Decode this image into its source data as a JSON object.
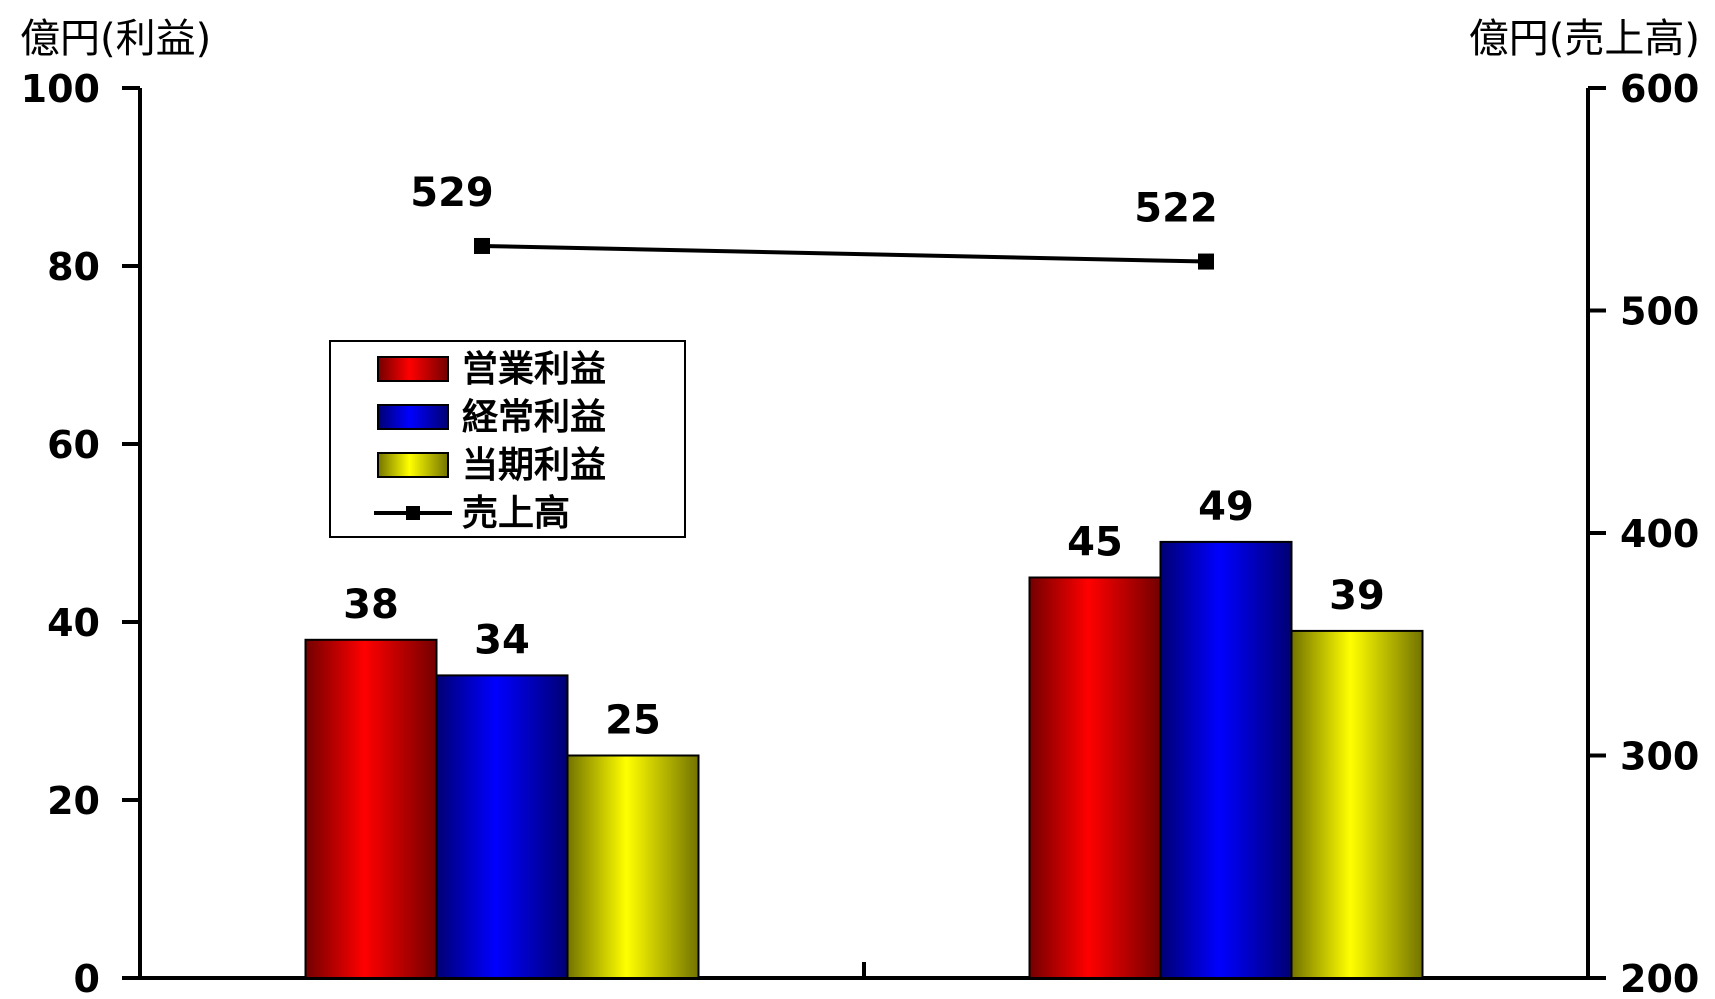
{
  "chart_data": {
    "type": "bar",
    "left_axis_title": "億円(利益)",
    "right_axis_title": "億円(売上高)",
    "groups": 2,
    "series": [
      {
        "name": "営業利益",
        "values": [
          38,
          45
        ],
        "color": "#ff0000",
        "axis": "left"
      },
      {
        "name": "経常利益",
        "values": [
          34,
          49
        ],
        "color": "#0000ff",
        "axis": "left"
      },
      {
        "name": "当期利益",
        "values": [
          25,
          39
        ],
        "color": "#ffff00",
        "axis": "left"
      }
    ],
    "line_series": {
      "name": "売上高",
      "values": [
        529,
        522
      ],
      "axis": "right",
      "marker": "square",
      "color": "#000000"
    },
    "left_axis": {
      "min": 0,
      "max": 100,
      "ticks": [
        0,
        20,
        40,
        60,
        80,
        100
      ]
    },
    "right_axis": {
      "min": 200,
      "max": 600,
      "ticks": [
        200,
        300,
        400,
        500,
        600
      ]
    },
    "legend_position": "center-left",
    "grid": false
  }
}
